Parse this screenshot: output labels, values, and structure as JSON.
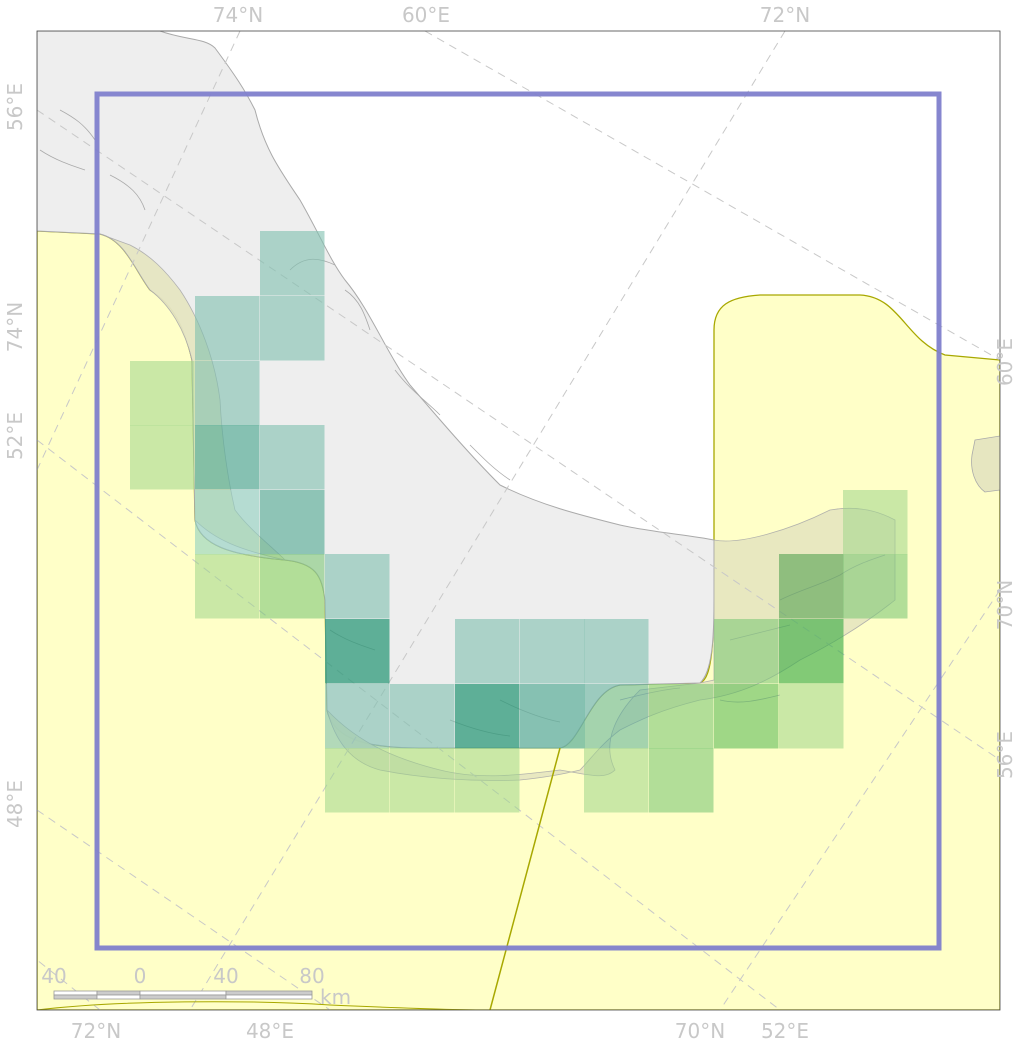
{
  "map": {
    "colors": {
      "sea": "#ffffff",
      "land": "#eeeeee",
      "coastline": "#aaaaaa",
      "region_fill": "#ffffc8",
      "region_border": "#a8a800",
      "frame": "#7f7fcc",
      "graticule": "#c8c8c8",
      "cell_teal": "#7fbfaf",
      "cell_green": "#9fd68a"
    },
    "top_labels": [
      "74°N",
      "60°E",
      "72°N"
    ],
    "bottom_labels": [
      "72°N",
      "48°E",
      "70°N",
      "52°E"
    ],
    "left_labels": [
      "56°E",
      "74°N",
      "52°E",
      "48°E"
    ],
    "right_labels": [
      "60°E",
      "70°N",
      "56°E"
    ],
    "scalebar": {
      "ticks": [
        "40",
        "0",
        "40",
        "80"
      ],
      "unit": "km"
    }
  }
}
